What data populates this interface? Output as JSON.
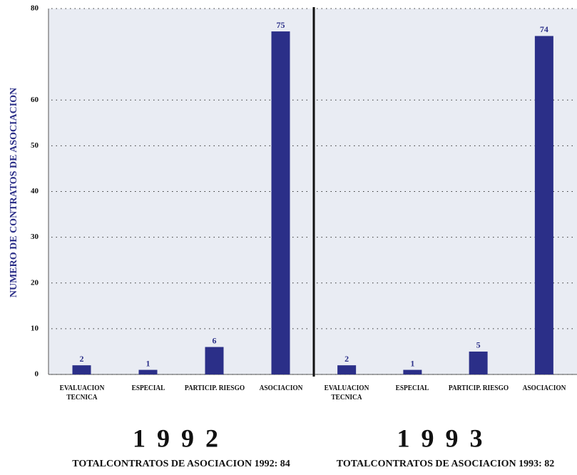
{
  "chart_data": [
    {
      "type": "bar",
      "y_label": "NUMERO DE CONTRATOS DE ASOCIACION",
      "title": "1992",
      "subtitle": "TOTALCONTRATOS DE ASOCIACION 1992: 84",
      "categories": [
        "EVALUACION\nTECNICA",
        "ESPECIAL",
        "PARTICIP. RIESGO",
        "ASOCIACION"
      ],
      "values": [
        2,
        1,
        6,
        75
      ],
      "color": "#2b2f88",
      "ylim": [
        0,
        80
      ],
      "yticks": [
        0,
        10,
        20,
        30,
        40,
        50,
        60,
        80
      ],
      "grid": true
    },
    {
      "type": "bar",
      "title": "1993",
      "subtitle": "TOTALCONTRATOS DE ASOCIACION 1993: 82",
      "categories": [
        "EVALUACION\nTECNICA",
        "ESPECIAL",
        "PARTICIP. RIESGO",
        "ASOCIACION"
      ],
      "values": [
        2,
        1,
        5,
        74
      ],
      "color": "#2b2f88",
      "ylim": [
        0,
        80
      ],
      "yticks": [
        0,
        10,
        20,
        30,
        40,
        50,
        60,
        80
      ],
      "grid": true
    }
  ]
}
